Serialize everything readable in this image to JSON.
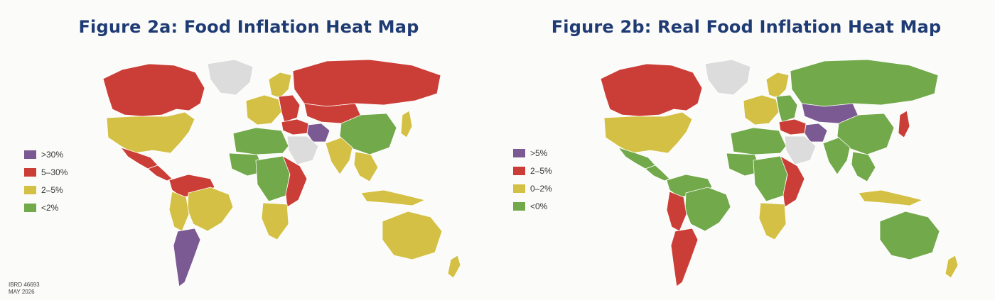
{
  "panels": [
    {
      "title": "Figure 2a: Food Inflation Heat Map",
      "legend": [
        {
          "label": ">30%",
          "color": "#7b5a93"
        },
        {
          "label": "5–30%",
          "color": "#cb3e37"
        },
        {
          "label": "2–5%",
          "color": "#d4c044"
        },
        {
          "label": "<2%",
          "color": "#72a94a"
        }
      ],
      "regions": {
        "canada": "red",
        "usa": "yellow",
        "mexico": "red",
        "central_america": "red",
        "greenland": "none",
        "south_america_north": "red",
        "brazil": "yellow",
        "south_america_west": "yellow",
        "argentina": "purple",
        "russia": "red",
        "europe_west": "yellow",
        "europe_east": "red",
        "scandinavia": "yellow",
        "iran": "purple",
        "middle_east": "red",
        "arabia": "none",
        "north_africa": "green",
        "west_africa": "green",
        "central_africa": "green",
        "east_africa": "red",
        "south_africa": "yellow",
        "central_asia": "red",
        "china": "green",
        "india": "yellow",
        "southeast_asia": "yellow",
        "japan": "yellow",
        "indonesia": "yellow",
        "australia": "yellow",
        "new_zealand": "yellow"
      }
    },
    {
      "title": "Figure 2b: Real Food Inflation Heat Map",
      "legend": [
        {
          "label": ">5%",
          "color": "#7b5a93"
        },
        {
          "label": "2–5%",
          "color": "#cb3e37"
        },
        {
          "label": "0–2%",
          "color": "#d4c044"
        },
        {
          "label": "<0%",
          "color": "#72a94a"
        }
      ],
      "regions": {
        "canada": "red",
        "usa": "yellow",
        "mexico": "green",
        "central_america": "green",
        "greenland": "none",
        "south_america_north": "green",
        "brazil": "green",
        "south_america_west": "red",
        "argentina": "red",
        "russia": "green",
        "europe_west": "yellow",
        "europe_east": "green",
        "scandinavia": "yellow",
        "iran": "purple",
        "middle_east": "red",
        "arabia": "none",
        "north_africa": "green",
        "west_africa": "green",
        "central_africa": "green",
        "east_africa": "red",
        "south_africa": "yellow",
        "central_asia": "purple",
        "china": "green",
        "india": "green",
        "southeast_asia": "green",
        "japan": "red",
        "indonesia": "yellow",
        "australia": "green",
        "new_zealand": "yellow"
      }
    }
  ],
  "palette": {
    "purple": "#7b5a93",
    "red": "#cb3e37",
    "yellow": "#d4c044",
    "green": "#72a94a",
    "none": "#dcdcdc"
  },
  "footnote": {
    "line1": "IBRD 46693",
    "line2": "MAY 2026"
  }
}
